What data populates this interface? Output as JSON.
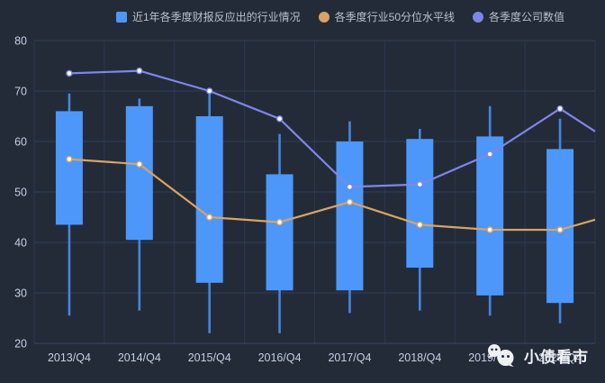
{
  "legend": {
    "items": [
      {
        "label": "近1年各季度财报反应出的行业情况",
        "shape": "square",
        "color": "#4d97fa"
      },
      {
        "label": "各季度行业50分位水平线",
        "shape": "circle",
        "color": "#d7a465"
      },
      {
        "label": "各季度公司数值",
        "shape": "circle",
        "color": "#7f86e9"
      }
    ]
  },
  "watermark": {
    "text": "小债看市",
    "icon": "wechat-icon"
  },
  "chart_data": {
    "type": "boxplot+lines",
    "categories": [
      "2013/Q4",
      "2014/Q4",
      "2015/Q4",
      "2016/Q4",
      "2017/Q4",
      "2018/Q4",
      "2019/Q4",
      "2020/Q4"
    ],
    "ylim": [
      20,
      80
    ],
    "y_ticks": [
      20,
      30,
      40,
      50,
      60,
      70,
      80
    ],
    "grid": true,
    "legend_position": "top-center",
    "series": [
      {
        "name": "近1年各季度财报反应出的行业情况",
        "type": "boxplot",
        "color": "#4d97fa",
        "whisker_color": "#4585e0",
        "note": "values are [low, q1, q3, high]",
        "data": [
          [
            25.5,
            43.5,
            66.0,
            69.5
          ],
          [
            26.5,
            40.5,
            67.0,
            68.5
          ],
          [
            22.0,
            32.0,
            65.0,
            69.5
          ],
          [
            22.0,
            30.5,
            53.5,
            61.5
          ],
          [
            26.0,
            30.5,
            60.0,
            64.0
          ],
          [
            26.5,
            35.0,
            60.5,
            62.5
          ],
          [
            25.5,
            29.5,
            61.0,
            67.0
          ],
          [
            24.0,
            28.0,
            58.5,
            64.5
          ]
        ]
      },
      {
        "name": "各季度行业50分位水平线",
        "type": "line",
        "color": "#d7a465",
        "values": [
          56.5,
          55.5,
          45.0,
          44.0,
          48.0,
          43.5,
          42.5,
          42.5
        ],
        "clipped_edge_value": 44.5
      },
      {
        "name": "各季度公司数值",
        "type": "line",
        "color": "#7f86e9",
        "values": [
          73.5,
          74.0,
          70.0,
          64.5,
          51.0,
          51.5,
          57.5,
          66.5
        ],
        "clipped_edge_value": 62.0
      }
    ]
  },
  "colors": {
    "background": "#232b39",
    "gridline": "#333e56",
    "splitline": "#2c3850",
    "axis_line": "#3e4a68",
    "tick_text": "#c6cfe2",
    "legend_text": "#b9c0cb",
    "watermark": "#eef1f4",
    "dot_fill": "#ffffff"
  }
}
